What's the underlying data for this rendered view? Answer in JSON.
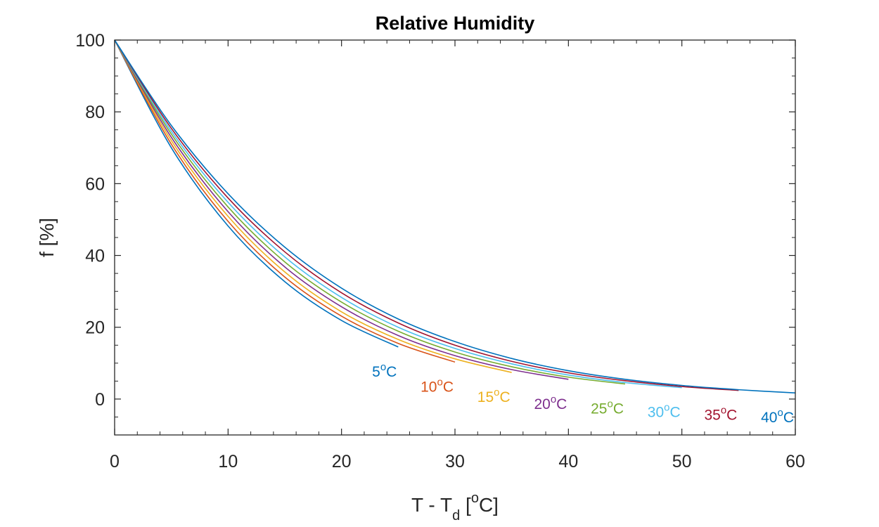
{
  "chart_data": {
    "type": "line",
    "title": "Relative Humidity",
    "xlabel": {
      "main": "T - T",
      "sub": "d",
      "open": " [",
      "sup": "o",
      "close": "C]"
    },
    "ylabel": "f [%]",
    "xlim": [
      0,
      60
    ],
    "ylim": [
      -10,
      100
    ],
    "xticks": [
      0,
      10,
      20,
      30,
      40,
      50,
      60
    ],
    "yticks": [
      0,
      20,
      40,
      60,
      80,
      100
    ],
    "xtick_labels": [
      "0",
      "10",
      "20",
      "30",
      "40",
      "50",
      "60"
    ],
    "ytick_labels": [
      "0",
      "20",
      "40",
      "60",
      "80",
      "100"
    ],
    "grid": false,
    "series": [
      {
        "name": "5°C",
        "label_num": "5",
        "T": 5,
        "x": [
          0,
          5,
          10,
          15,
          20,
          25
        ],
        "y": [
          100,
          70.0,
          48.2,
          32.7,
          21.9,
          14.5
        ],
        "color": "#0072BD"
      },
      {
        "name": "10°C",
        "label_num": "10",
        "T": 10,
        "x": [
          0,
          5,
          10,
          15,
          20,
          25,
          30
        ],
        "y": [
          100,
          71.0,
          49.5,
          34.0,
          23.1,
          15.5,
          10.3
        ],
        "color": "#D95319"
      },
      {
        "name": "15°C",
        "label_num": "15",
        "T": 15,
        "x": [
          0,
          5,
          10,
          15,
          20,
          25,
          30,
          35
        ],
        "y": [
          100,
          72.0,
          50.9,
          35.4,
          24.3,
          16.6,
          11.2,
          7.4
        ],
        "color": "#EDB120"
      },
      {
        "name": "20°C",
        "label_num": "20",
        "T": 20,
        "x": [
          0,
          5,
          10,
          15,
          20,
          25,
          30,
          35,
          40
        ],
        "y": [
          100,
          72.9,
          52.2,
          36.8,
          25.7,
          17.7,
          12.1,
          8.2,
          5.5
        ],
        "color": "#7E2F8E"
      },
      {
        "name": "25°C",
        "label_num": "25",
        "T": 25,
        "x": [
          0,
          5,
          10,
          15,
          20,
          25,
          30,
          35,
          40,
          45
        ],
        "y": [
          100,
          73.8,
          53.5,
          38.2,
          27.0,
          18.9,
          13.1,
          9.0,
          6.1,
          4.2
        ],
        "color": "#77AC30"
      },
      {
        "name": "30°C",
        "label_num": "30",
        "T": 30,
        "x": [
          0,
          5,
          10,
          15,
          20,
          25,
          30,
          35,
          40,
          45,
          50
        ],
        "y": [
          100,
          74.6,
          54.8,
          39.6,
          28.3,
          20.0,
          14.1,
          9.8,
          6.7,
          4.6,
          3.2
        ],
        "color": "#4DBEEE"
      },
      {
        "name": "35°C",
        "label_num": "35",
        "T": 35,
        "x": [
          0,
          5,
          10,
          15,
          20,
          25,
          30,
          35,
          40,
          45,
          50,
          55
        ],
        "y": [
          100,
          75.4,
          56.0,
          41.0,
          29.6,
          21.2,
          15.0,
          10.5,
          7.3,
          5.1,
          3.5,
          2.4
        ],
        "color": "#A2142F"
      },
      {
        "name": "40°C",
        "label_num": "40",
        "T": 40,
        "x": [
          0,
          5,
          10,
          15,
          20,
          25,
          30,
          35,
          40,
          45,
          50,
          55,
          60
        ],
        "y": [
          100,
          76.2,
          57.2,
          42.3,
          30.9,
          22.3,
          16.0,
          11.3,
          7.9,
          5.5,
          3.8,
          2.6,
          1.7
        ],
        "color": "#0072BD"
      }
    ]
  }
}
